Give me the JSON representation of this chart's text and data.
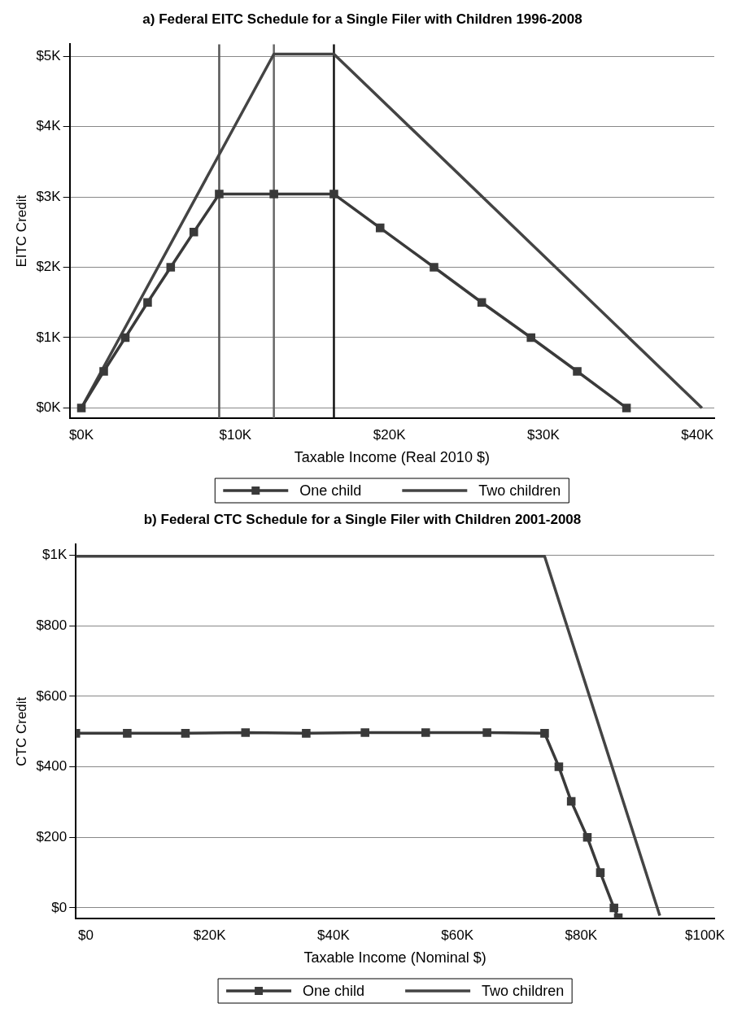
{
  "chart_data": [
    {
      "type": "line",
      "title": "a) Federal EITC Schedule for a Single Filer with Children 1996-2008",
      "xlabel": "Taxable Income (Real 2010 $)",
      "ylabel": "EITC Credit",
      "xlim": [
        -760,
        41100
      ],
      "xticks": [
        {
          "value": 0,
          "label": "$0K"
        },
        {
          "value": 10000,
          "label": "$10K"
        },
        {
          "value": 20000,
          "label": "$20K"
        },
        {
          "value": 30000,
          "label": "$30K"
        },
        {
          "value": 40000,
          "label": "$40K"
        }
      ],
      "ylim": [
        -145,
        5170
      ],
      "yticks": [
        {
          "value": 0,
          "label": "$0K"
        },
        {
          "value": 1000,
          "label": "$1K"
        },
        {
          "value": 2000,
          "label": "$2K"
        },
        {
          "value": 3000,
          "label": "$3K"
        },
        {
          "value": 4000,
          "label": "$4K"
        },
        {
          "value": 5000,
          "label": "$5K"
        }
      ],
      "grid": "y",
      "legend": "bottom",
      "series": [
        {
          "name": "One child",
          "color": "#3a3a3a",
          "marker": "square",
          "x": [
            0,
            1450,
            2850,
            4300,
            5800,
            7300,
            8950,
            12500,
            16400,
            19400,
            22900,
            26000,
            29200,
            32200,
            35400
          ],
          "values": [
            0,
            520,
            1000,
            1500,
            2000,
            2500,
            3040,
            3040,
            3040,
            2560,
            2000,
            1500,
            1000,
            520,
            0
          ]
        },
        {
          "name": "Two children",
          "color": "#444444",
          "marker": "none",
          "x": [
            0,
            12500,
            16400,
            40300
          ],
          "values": [
            0,
            5030,
            5030,
            0
          ]
        }
      ],
      "ref_lines": [
        {
          "axis": "x",
          "value": 8950,
          "color": "#555555"
        },
        {
          "axis": "x",
          "value": 12500,
          "color": "#666666"
        },
        {
          "axis": "x",
          "value": 16400,
          "color": "#111111"
        }
      ]
    },
    {
      "type": "line",
      "title": "b) Federal CTC Schedule for a Single Filer with Children 2001-2008",
      "xlabel": "Taxable Income (Nominal $)",
      "ylabel": "CTC Credit",
      "xlim": [
        -1600,
        101500
      ],
      "xticks": [
        {
          "value": 0,
          "label": "$0"
        },
        {
          "value": 20000,
          "label": "$20K"
        },
        {
          "value": 40000,
          "label": "$40K"
        },
        {
          "value": 60000,
          "label": "$60K"
        },
        {
          "value": 80000,
          "label": "$80K"
        },
        {
          "value": 100000,
          "label": "$100K"
        }
      ],
      "ylim": [
        -30,
        1030
      ],
      "yticks": [
        {
          "value": 0,
          "label": "$0"
        },
        {
          "value": 200,
          "label": "$200"
        },
        {
          "value": 400,
          "label": "$400"
        },
        {
          "value": 600,
          "label": "$600"
        },
        {
          "value": 800,
          "label": "$800"
        },
        {
          "value": 1000,
          "label": "$1K"
        }
      ],
      "grid": "y",
      "legend": "bottom",
      "series": [
        {
          "name": "One child",
          "color": "#3a3a3a",
          "marker": "square",
          "x": [
            -1600,
            6700,
            16100,
            25800,
            35600,
            45100,
            54900,
            64800,
            74100,
            76400,
            78400,
            81000,
            83100,
            85300,
            86000
          ],
          "values": [
            495,
            495,
            495,
            497,
            495,
            497,
            497,
            497,
            495,
            400,
            302,
            200,
            100,
            0,
            -28
          ]
        },
        {
          "name": "Two children",
          "color": "#444444",
          "marker": "none",
          "x": [
            -1600,
            74100,
            92700
          ],
          "values": [
            997,
            997,
            -22
          ]
        }
      ]
    }
  ]
}
